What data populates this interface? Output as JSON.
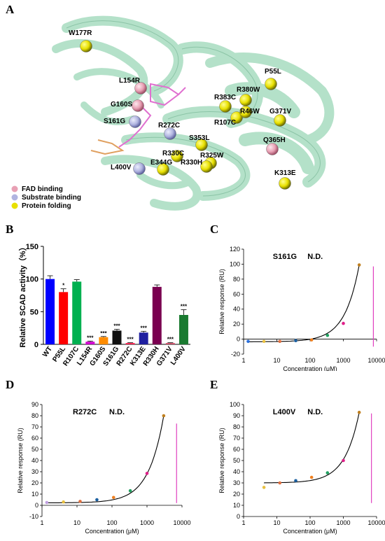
{
  "panels": {
    "a": "A",
    "b": "B",
    "c": "C",
    "d": "D",
    "e": "E"
  },
  "structure": {
    "mutations": [
      "W177R",
      "L154R",
      "G160S",
      "S161G",
      "R272C",
      "P55L",
      "R383C",
      "R380W",
      "R107C",
      "R46W",
      "G371V",
      "S353L",
      "Q365H",
      "R330C",
      "R325W",
      "E344G",
      "R330H",
      "L400V",
      "K313E"
    ],
    "sphere_colors": {
      "fad": "#e8a0b4",
      "substrate": "#b0b4e0",
      "folding": "#e8e000"
    },
    "legend": [
      {
        "label": "FAD binding",
        "color": "#e8a0b4"
      },
      {
        "label": "Substrate binding",
        "color": "#b0b4e0"
      },
      {
        "label": "Protein folding",
        "color": "#e8e000"
      }
    ]
  },
  "chart_data": [
    {
      "id": "B",
      "type": "bar",
      "ylabel": "Relative SCAD activity（%）",
      "ylim": [
        0,
        150
      ],
      "yticks": [
        0,
        50,
        100,
        150
      ],
      "categories": [
        "WT",
        "P55L",
        "R107C",
        "L154R",
        "G160S",
        "S161G",
        "R272C",
        "K313E",
        "R330H",
        "G371V",
        "L400V"
      ],
      "values": [
        100,
        80,
        96,
        4,
        11,
        21,
        2,
        18,
        88,
        2,
        45
      ],
      "errors": [
        5,
        5,
        3,
        1,
        1,
        2,
        0.5,
        2,
        3,
        0.5,
        8
      ],
      "colors": [
        "#0000ff",
        "#ff0000",
        "#00b050",
        "#d000d0",
        "#ff8c00",
        "#111111",
        "#ff2050",
        "#1f1fa0",
        "#7a0050",
        "#d0506a",
        "#1a7a30"
      ],
      "significance": [
        "",
        "*",
        "",
        "***",
        "***",
        "***",
        "***",
        "***",
        "",
        "***",
        "***"
      ]
    },
    {
      "id": "C",
      "type": "scatter",
      "title": "S161G",
      "annotation": "N.D.",
      "xlabel": "Concentration (μM)",
      "ylabel": "Relative response (RU)",
      "xscale": "log",
      "xlim": [
        1,
        10000
      ],
      "xticks": [
        "1",
        "10",
        "100",
        "1000",
        "10000"
      ],
      "ylim": [
        -20,
        120
      ],
      "yticks": [
        -20,
        0,
        20,
        40,
        60,
        80,
        100,
        120
      ],
      "x": [
        1.37,
        4.1,
        12.3,
        37,
        111,
        333,
        1000,
        3000
      ],
      "y": [
        -3,
        -3,
        -3,
        -2,
        -1,
        5,
        21,
        99
      ],
      "point_colors": [
        "#2a6fdb",
        "#e8c040",
        "#e07040",
        "#1a5fa0",
        "#f08020",
        "#20a060",
        "#e0208a",
        "#c08020"
      ],
      "fit": {
        "base": -3.5,
        "amp": 102.5,
        "x_max": 3000,
        "k": 3.2
      },
      "reference_line_x": 8000,
      "reference_line_range": [
        -10,
        97
      ]
    },
    {
      "id": "D",
      "type": "scatter",
      "title": "R272C",
      "annotation": "N.D.",
      "xlabel": "Concentration (μM)",
      "ylabel": "Relative response (RU)",
      "xscale": "log",
      "xlim": [
        1,
        10000
      ],
      "xticks": [
        "1",
        "10",
        "100",
        "1000",
        "10000"
      ],
      "ylim": [
        -10,
        90
      ],
      "yticks": [
        -10,
        0,
        10,
        20,
        30,
        40,
        50,
        60,
        70,
        80,
        90
      ],
      "x": [
        1.37,
        4.1,
        12.3,
        37,
        111,
        333,
        1000,
        3000
      ],
      "y": [
        2.5,
        3,
        3.5,
        5,
        7,
        13,
        28.5,
        80
      ],
      "point_colors": [
        "#c0a0e0",
        "#e8c040",
        "#e07040",
        "#1a5fa0",
        "#f08020",
        "#20a060",
        "#e0208a",
        "#c08020"
      ],
      "fit": {
        "base": 2.2,
        "amp": 77.8,
        "x_max": 3000,
        "k": 3.1
      },
      "reference_line_x": 7000,
      "reference_line_range": [
        2,
        73
      ]
    },
    {
      "id": "E",
      "type": "scatter",
      "title": "L400V",
      "annotation": "N.D.",
      "xlabel": "Concentration (μM)",
      "ylabel": "Relative response (RU)",
      "xscale": "log",
      "xlim": [
        1,
        10000
      ],
      "xticks": [
        "1",
        "10",
        "100",
        "1000",
        "10000"
      ],
      "ylim": [
        0,
        100
      ],
      "yticks": [
        0,
        10,
        20,
        30,
        40,
        50,
        60,
        70,
        80,
        90,
        100
      ],
      "x": [
        4.1,
        12.3,
        37,
        111,
        333,
        1000,
        3000
      ],
      "y": [
        26,
        30,
        32,
        35,
        39,
        50,
        93
      ],
      "point_colors": [
        "#e8c040",
        "#e07040",
        "#1a5fa0",
        "#f08020",
        "#20a060",
        "#e0208a",
        "#c08020"
      ],
      "fit": {
        "base": 30,
        "amp": 63,
        "x_max": 3000,
        "k": 3.3
      },
      "reference_line_x": 7000,
      "reference_line_range": [
        12,
        92
      ]
    }
  ]
}
